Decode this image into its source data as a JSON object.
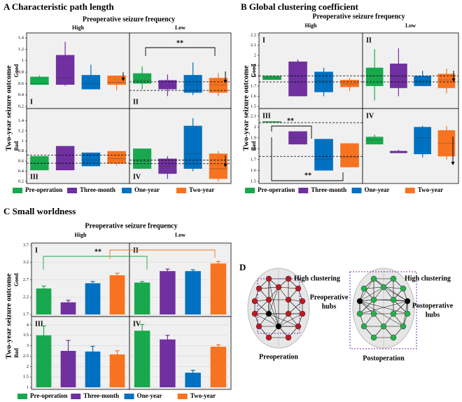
{
  "chart_data": [
    {
      "type": "box",
      "title": "A Characteristic path length",
      "column_title": "Preoperative seizure frequency",
      "columns": [
        "High",
        "Low"
      ],
      "row_title": "Two-year seizure outcome",
      "rows": [
        "Good",
        "Bad"
      ],
      "series": [
        {
          "name": "Pre-operation",
          "color": "#19a84e"
        },
        {
          "name": "Three-month",
          "color": "#7030a0"
        },
        {
          "name": "One-year",
          "color": "#0070c0"
        },
        {
          "name": "Two-year",
          "color": "#f8731f"
        }
      ],
      "row_axes": [
        {
          "ylim": [
            0.2,
            1.45
          ],
          "yticks": [
            0.2,
            0.4,
            0.6,
            0.8,
            1,
            1.2,
            1.4
          ]
        },
        {
          "ylim": [
            0.2,
            1.6
          ],
          "yticks": [
            0.2,
            0.4,
            0.6,
            0.8,
            1,
            1.2,
            1.4
          ]
        }
      ],
      "grid": false,
      "panels": [
        {
          "label": "I",
          "boxes": [
            [
              0.58,
              0.58,
              0.6,
              0.72,
              0.74
            ],
            [
              0.56,
              0.58,
              0.7,
              1.1,
              1.33
            ],
            [
              0.5,
              0.5,
              0.6,
              0.75,
              0.93
            ],
            [
              0.48,
              0.58,
              0.62,
              0.74,
              0.74
            ]
          ]
        },
        {
          "label": "II",
          "boxes": [
            [
              0.5,
              0.6,
              0.66,
              0.78,
              0.9
            ],
            [
              0.38,
              0.5,
              0.56,
              0.66,
              0.76
            ],
            [
              0.4,
              0.44,
              0.58,
              0.75,
              0.97
            ],
            [
              0.38,
              0.44,
              0.58,
              0.7,
              0.78
            ]
          ],
          "ref_lines": [
            0.63,
            0.48
          ],
          "annotations": [
            "**"
          ]
        },
        {
          "label": "III",
          "boxes": [
            [
              0.42,
              0.42,
              0.55,
              0.7,
              0.7
            ],
            [
              0.42,
              0.42,
              0.55,
              0.9,
              0.9
            ],
            [
              0.5,
              0.5,
              0.62,
              0.77,
              0.77
            ],
            [
              0.52,
              0.55,
              0.65,
              0.8,
              0.8
            ]
          ],
          "ref_lines": [
            0.72,
            0.56
          ]
        },
        {
          "label": "IV",
          "boxes": [
            [
              0.45,
              0.45,
              0.6,
              0.85,
              0.85
            ],
            [
              0.25,
              0.35,
              0.5,
              0.65,
              0.7
            ],
            [
              0.4,
              0.45,
              0.75,
              1.3,
              1.45
            ],
            [
              0.2,
              0.25,
              0.45,
              0.75,
              0.8
            ]
          ],
          "ref_lines": [
            0.62,
            0.55
          ]
        }
      ]
    },
    {
      "type": "box",
      "title": "B Global clustering coefficient",
      "column_title": "Preoperative seizure frequency",
      "columns": [
        "High",
        "Low"
      ],
      "row_title": "Two-year seizure outcome",
      "rows": [
        "Good",
        "Bad"
      ],
      "series": [
        {
          "name": "Pre-operation",
          "color": "#19a84e"
        },
        {
          "name": "Three-month",
          "color": "#7030a0"
        },
        {
          "name": "One-year",
          "color": "#0070c0"
        },
        {
          "name": "Two-year",
          "color": "#f8731f"
        }
      ],
      "row_axes": [
        {
          "ylim": [
            1.5,
            2.2
          ],
          "yticks": [
            1.5,
            1.6,
            1.7,
            1.8,
            1.9,
            2,
            2.1,
            2.2
          ]
        },
        {
          "ylim": [
            1.5,
            2.15
          ],
          "yticks": [
            1.5,
            1.6,
            1.7,
            1.8,
            1.9,
            2,
            2.1
          ]
        }
      ],
      "grid": false,
      "panels": [
        {
          "label": "I",
          "boxes": [
            [
              1.76,
              1.76,
              1.78,
              1.8,
              1.8
            ],
            [
              1.6,
              1.6,
              1.8,
              1.94,
              1.96
            ],
            [
              1.6,
              1.64,
              1.75,
              1.84,
              1.88
            ],
            [
              1.65,
              1.69,
              1.72,
              1.76,
              1.78
            ]
          ],
          "ref_lines": [
            1.8,
            1.74
          ]
        },
        {
          "label": "II",
          "boxes": [
            [
              1.56,
              1.7,
              1.8,
              1.88,
              2.06
            ],
            [
              1.6,
              1.68,
              1.8,
              1.92,
              2.07
            ],
            [
              1.7,
              1.7,
              1.75,
              1.8,
              1.85
            ],
            [
              1.63,
              1.68,
              1.76,
              1.82,
              1.87
            ]
          ],
          "ref_lines": [
            1.8,
            1.74
          ]
        },
        {
          "label": "III",
          "boxes": [
            [
              2.04,
              2.04,
              2.05,
              2.05,
              2.05
            ],
            [
              1.84,
              1.84,
              1.9,
              1.96,
              1.96
            ],
            [
              1.6,
              1.6,
              1.7,
              1.89,
              1.89
            ],
            [
              1.63,
              1.63,
              1.72,
              1.85,
              1.85
            ]
          ],
          "ref_lines": [
            2.04,
            1.73
          ],
          "annotations": [
            "**",
            "**"
          ]
        },
        {
          "label": "IV",
          "boxes": [
            [
              1.84,
              1.84,
              1.88,
              1.91,
              1.93
            ],
            [
              1.76,
              1.76,
              1.77,
              1.78,
              1.79
            ],
            [
              1.72,
              1.75,
              1.9,
              2,
              2.01
            ],
            [
              1.7,
              1.73,
              1.85,
              1.97,
              2.01
            ]
          ]
        }
      ]
    },
    {
      "type": "bar",
      "title": "C Small worldness",
      "column_title": "Preoperative seizure frequency",
      "columns": [
        "High",
        "Low"
      ],
      "row_title": "Two-year seizure outcome",
      "rows": [
        "Good",
        "Bad"
      ],
      "series": [
        {
          "name": "Pre-operation",
          "color": "#19a84e"
        },
        {
          "name": "Three-month",
          "color": "#7030a0"
        },
        {
          "name": "One-year",
          "color": "#0070c0"
        },
        {
          "name": "Two-year",
          "color": "#f8731f"
        }
      ],
      "row_axes": [
        {
          "ylim": [
            1.7,
            3.7
          ],
          "yticks": [
            1.7,
            2.2,
            2.7,
            3.2,
            3.7
          ]
        },
        {
          "ylim": [
            1,
            4.3
          ],
          "yticks": [
            1,
            1.5,
            2,
            2.5,
            3,
            3.5,
            4
          ]
        }
      ],
      "grid": true,
      "panels": [
        {
          "label": "I",
          "values": [
            2.45,
            2.05,
            2.6,
            2.83
          ],
          "errors": [
            0.07,
            0.06,
            0.05,
            0.06
          ],
          "annotations": [
            "**"
          ]
        },
        {
          "label": "II",
          "values": [
            2.62,
            2.95,
            2.95,
            3.17
          ],
          "errors": [
            0.03,
            0.06,
            0.04,
            0.06
          ]
        },
        {
          "label": "III",
          "values": [
            3.5,
            2.75,
            2.72,
            2.58
          ],
          "errors": [
            0.45,
            0.5,
            0.25,
            0.18
          ]
        },
        {
          "label": "IV",
          "values": [
            3.72,
            3.3,
            1.7,
            2.95
          ],
          "errors": [
            0.3,
            0.2,
            0.12,
            0.1
          ]
        }
      ]
    }
  ],
  "diagram": {
    "label": "D",
    "left_clustering": "High clustering",
    "left_hubs": [
      "Preoperative",
      "hubs"
    ],
    "left_caption": "Preoperation",
    "right_clustering": "High clustering",
    "right_hubs": [
      "Postoperative",
      "hubs"
    ],
    "right_caption": "Postoperation"
  }
}
